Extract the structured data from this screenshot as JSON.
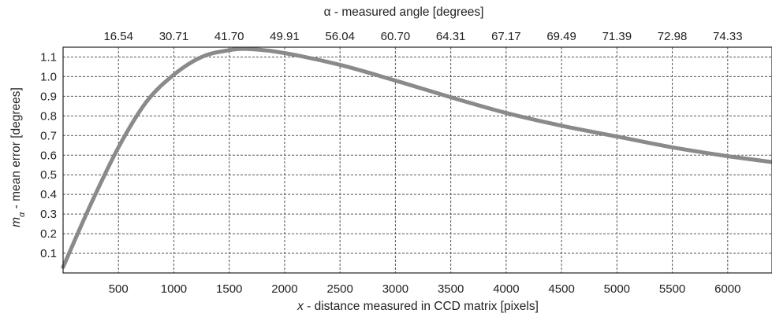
{
  "chart_data": {
    "type": "line",
    "title": "",
    "xlabel": {
      "italic_symbol": "x",
      "text": " - distance measured in CCD matrix [pixels]"
    },
    "ylabel": {
      "italic_symbol": "m",
      "subscript": "α",
      "text": " - mean error [degrees]"
    },
    "x2label": "α - measured angle [degrees]",
    "xlim": [
      0,
      6400
    ],
    "ylim": [
      0,
      1.15
    ],
    "x_ticks": [
      500,
      1000,
      1500,
      2000,
      2500,
      3000,
      3500,
      4000,
      4500,
      5000,
      5500,
      6000
    ],
    "x_tick_labels": [
      "500",
      "1000",
      "1500",
      "2000",
      "2500",
      "3000",
      "3500",
      "4000",
      "4500",
      "5000",
      "5500",
      "6000"
    ],
    "y_ticks": [
      0.1,
      0.2,
      0.3,
      0.4,
      0.5,
      0.6,
      0.7,
      0.8,
      0.9,
      1.0,
      1.1
    ],
    "y_tick_labels": [
      "0.1",
      "0.2",
      "0.3",
      "0.4",
      "0.5",
      "0.6",
      "0.7",
      "0.8",
      "0.9",
      "1.0",
      "1.1"
    ],
    "x2_tick_labels": [
      "16.54",
      "30.71",
      "41.70",
      "49.91",
      "56.04",
      "60.70",
      "64.31",
      "67.17",
      "69.49",
      "71.39",
      "72.98",
      "74.33"
    ],
    "grid": true,
    "legend": "none",
    "series": [
      {
        "color": "#8a8a8a",
        "x": [
          0,
          250,
          500,
          750,
          1000,
          1250,
          1500,
          1700,
          2000,
          2500,
          3000,
          3500,
          4000,
          4500,
          5000,
          5500,
          6000,
          6400
        ],
        "y": [
          0.03,
          0.35,
          0.64,
          0.87,
          1.01,
          1.1,
          1.135,
          1.14,
          1.12,
          1.06,
          0.98,
          0.895,
          0.815,
          0.75,
          0.695,
          0.64,
          0.595,
          0.565
        ]
      }
    ]
  }
}
